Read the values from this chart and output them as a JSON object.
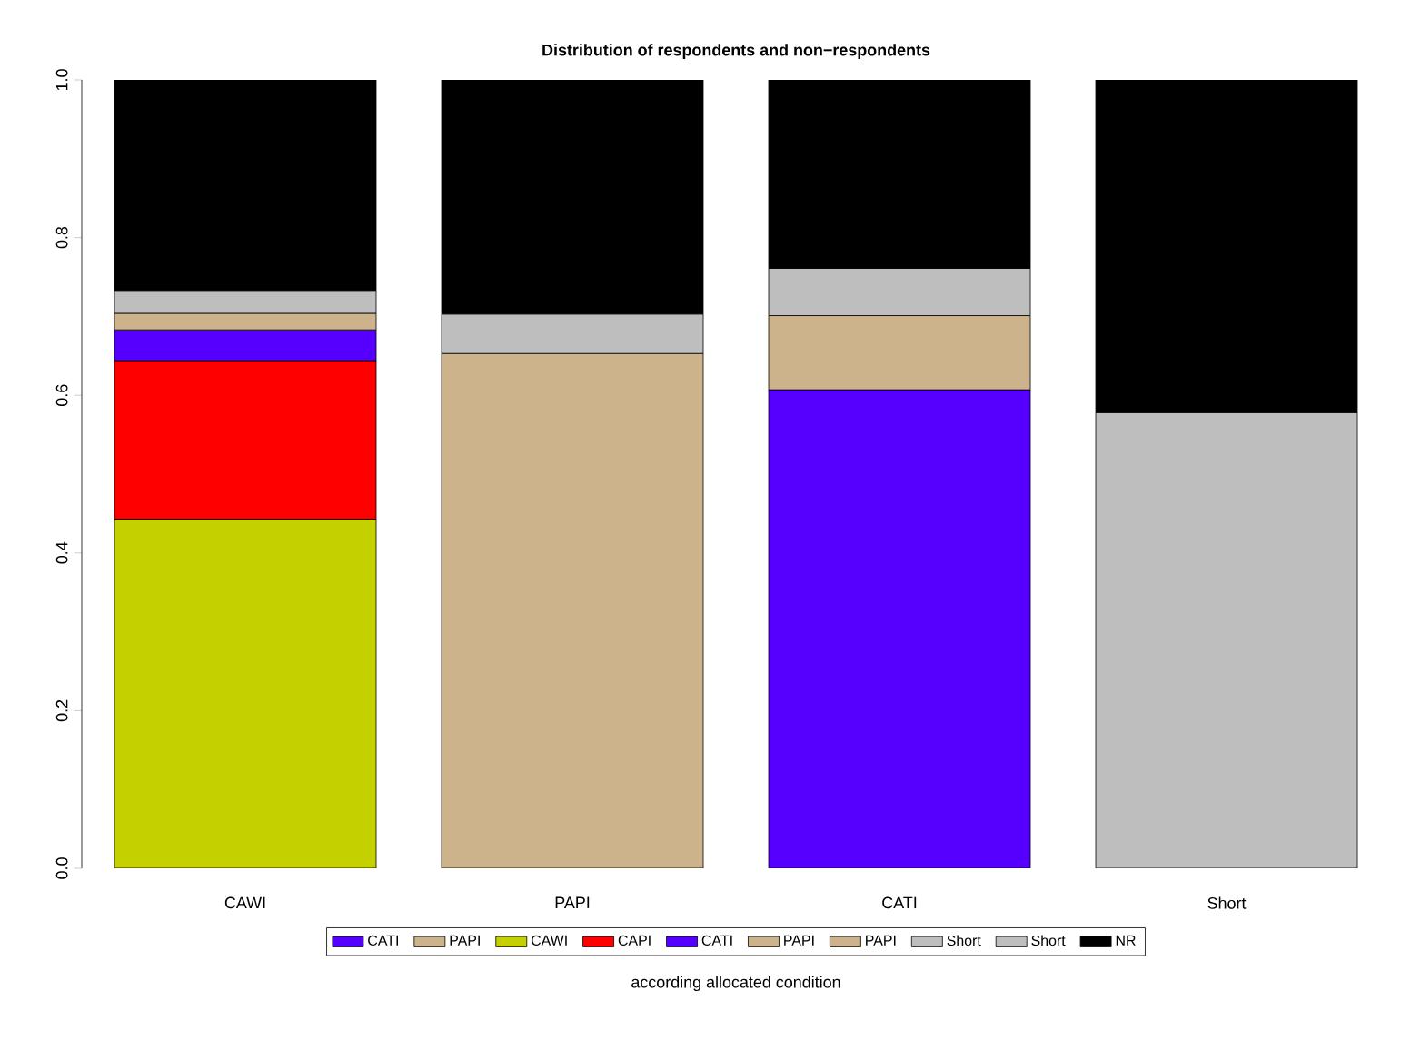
{
  "chart_data": {
    "type": "bar",
    "stacked": true,
    "title": "Distribution of respondents and non−respondents",
    "xlabel": "according allocated condition",
    "categories": [
      "CAWI",
      "PAPI",
      "CATI",
      "Short"
    ],
    "series": [
      {
        "name": "CATI",
        "color": "#5500ff",
        "values": [
          null,
          null,
          0.607,
          null
        ]
      },
      {
        "name": "PAPI",
        "color": "#cdb38b",
        "values": [
          null,
          0.653,
          0.094,
          null
        ]
      },
      {
        "name": "CAWI",
        "color": "#c5d000",
        "values": [
          0.443,
          null,
          null,
          null
        ]
      },
      {
        "name": "CAPI",
        "color": "#ff0000",
        "values": [
          0.201,
          null,
          null,
          null
        ]
      },
      {
        "name": "CATI",
        "color": "#5500ff",
        "values": [
          0.039,
          null,
          null,
          null
        ]
      },
      {
        "name": "PAPI",
        "color": "#cdb38b",
        "values": [
          0.021,
          null,
          null,
          null
        ]
      },
      {
        "name": "PAPI",
        "color": "#cdb38b",
        "values": [
          null,
          null,
          null,
          null
        ]
      },
      {
        "name": "Short",
        "color": "#bebebe",
        "values": [
          0.029,
          0.05,
          0.06,
          0.578
        ]
      },
      {
        "name": "Short",
        "color": "#bebebe",
        "values": [
          null,
          null,
          null,
          null
        ]
      },
      {
        "name": "NR",
        "color": "#000000",
        "values": [
          0.267,
          0.297,
          0.239,
          0.422
        ]
      }
    ],
    "ylim": [
      0,
      1
    ],
    "yticks": [
      {
        "value": 0,
        "label": "0.0"
      },
      0.2,
      0.4,
      0.6,
      0.8,
      {
        "value": 1,
        "label": "1.0"
      }
    ],
    "legend": "bottom"
  }
}
